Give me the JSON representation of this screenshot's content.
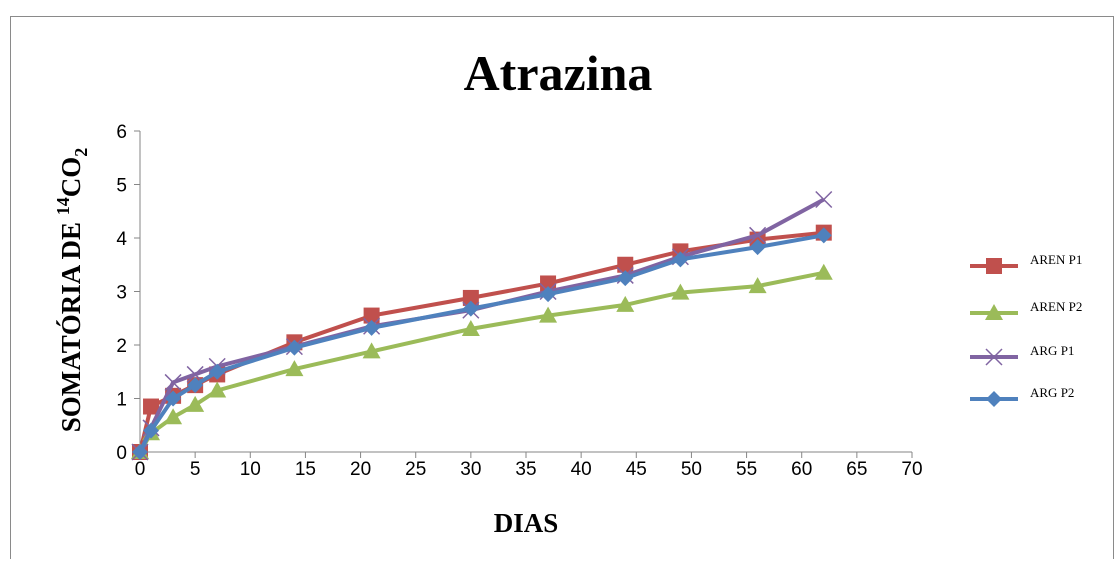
{
  "chart_data": {
    "type": "line",
    "title": "Atrazina",
    "xlabel": "DIAS",
    "ylabel": {
      "prefix": "SOMATÓRIA DE ",
      "sup": "14",
      "main": "CO",
      "sub": "2"
    },
    "xlim": [
      0,
      70
    ],
    "ylim": [
      0,
      6
    ],
    "xticks": [
      0,
      5,
      10,
      15,
      20,
      25,
      30,
      35,
      40,
      45,
      50,
      55,
      60,
      65,
      70
    ],
    "yticks": [
      0,
      1,
      2,
      3,
      4,
      5,
      6
    ],
    "grid": false,
    "legend_position": "right",
    "series": [
      {
        "name": "AREN P1",
        "color": "#C0504D",
        "marker": "square",
        "x": [
          0,
          1,
          3,
          5,
          7,
          14,
          21,
          30,
          37,
          44,
          49,
          56,
          62
        ],
        "y": [
          0,
          0.85,
          1.05,
          1.25,
          1.45,
          2.05,
          2.55,
          2.88,
          3.15,
          3.5,
          3.75,
          3.97,
          4.1
        ]
      },
      {
        "name": "AREN P2",
        "color": "#9BBB59",
        "marker": "triangle",
        "x": [
          0,
          1,
          3,
          5,
          7,
          14,
          21,
          30,
          37,
          44,
          49,
          56,
          62
        ],
        "y": [
          0,
          0.35,
          0.65,
          0.88,
          1.15,
          1.55,
          1.88,
          2.3,
          2.55,
          2.75,
          2.98,
          3.1,
          3.35
        ]
      },
      {
        "name": "ARG P1",
        "color": "#8064A2",
        "marker": "x",
        "x": [
          0,
          1,
          3,
          5,
          7,
          14,
          21,
          30,
          37,
          44,
          49,
          56,
          62
        ],
        "y": [
          0,
          0.45,
          1.3,
          1.45,
          1.6,
          1.97,
          2.35,
          2.65,
          3.0,
          3.3,
          3.65,
          4.05,
          4.72
        ]
      },
      {
        "name": "ARG P2",
        "color": "#4F81BD",
        "marker": "diamond",
        "x": [
          0,
          1,
          3,
          5,
          7,
          14,
          21,
          30,
          37,
          44,
          49,
          56,
          62
        ],
        "y": [
          0,
          0.4,
          1.0,
          1.25,
          1.5,
          1.95,
          2.32,
          2.68,
          2.95,
          3.25,
          3.6,
          3.83,
          4.05
        ]
      }
    ]
  }
}
